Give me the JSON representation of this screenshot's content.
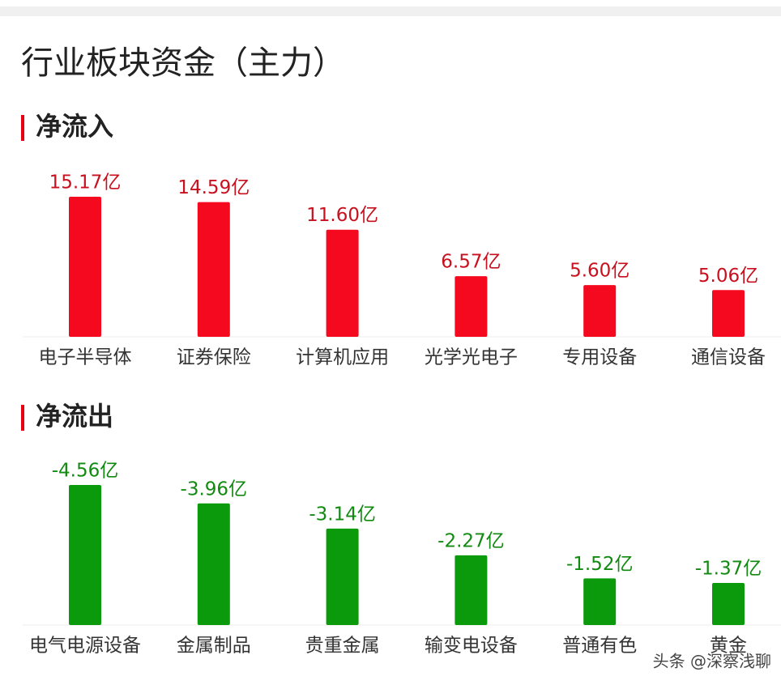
{
  "header": {
    "title": "行业板块资金（主力）"
  },
  "chart_data": [
    {
      "type": "bar",
      "title": "净流入",
      "categories": [
        "电子半导体",
        "证券保险",
        "计算机应用",
        "光学光电子",
        "专用设备",
        "通信设备"
      ],
      "values": [
        15.17,
        14.59,
        11.6,
        6.57,
        5.6,
        5.06
      ],
      "value_labels": [
        "15.17亿",
        "14.59亿",
        "11.60亿",
        "6.57亿",
        "5.60亿",
        "5.06亿"
      ],
      "color": "#f5091e",
      "label_color": "#c8101e"
    },
    {
      "type": "bar",
      "title": "净流出",
      "categories": [
        "电气电源设备",
        "金属制品",
        "贵重金属",
        "输变电设备",
        "普通有色",
        "黄金"
      ],
      "values": [
        -4.56,
        -3.96,
        -3.14,
        -2.27,
        -1.52,
        -1.37
      ],
      "value_labels": [
        "-4.56亿",
        "-3.96亿",
        "-3.14亿",
        "-2.27亿",
        "-1.52亿",
        "-1.37亿"
      ],
      "color": "#0b9a0b",
      "label_color": "#128a12"
    }
  ],
  "watermark": "头条 @深察浅聊"
}
